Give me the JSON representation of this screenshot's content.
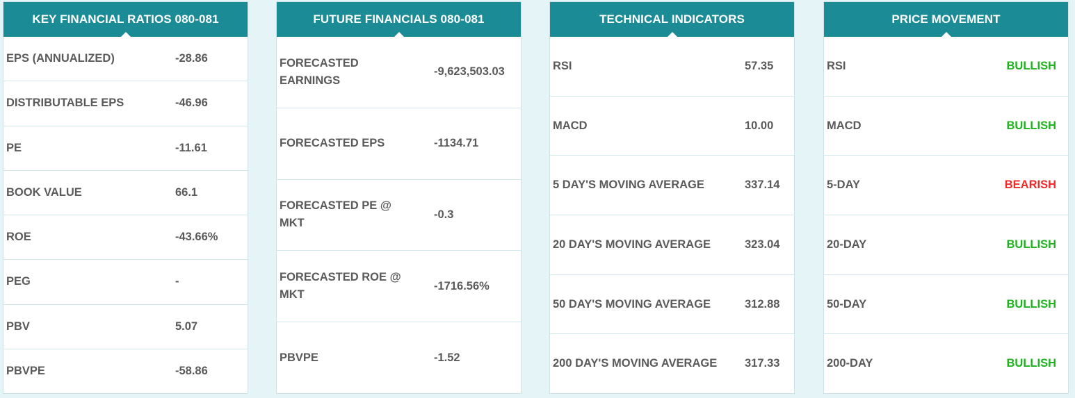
{
  "cards": [
    {
      "title": "KEY FINANCIAL RATIOS 080-081",
      "rows": [
        {
          "label": "EPS (ANNUALIZED)",
          "value": "-28.86"
        },
        {
          "label": "DISTRIBUTABLE EPS",
          "value": "-46.96"
        },
        {
          "label": "PE",
          "value": "-11.61"
        },
        {
          "label": "BOOK VALUE",
          "value": "66.1"
        },
        {
          "label": "ROE",
          "value": "-43.66%"
        },
        {
          "label": "PEG",
          "value": "-"
        },
        {
          "label": "PBV",
          "value": "5.07"
        },
        {
          "label": "PBVPE",
          "value": "-58.86"
        }
      ]
    },
    {
      "title": "FUTURE FINANCIALS 080-081",
      "rows": [
        {
          "label": "FORECASTED EARNINGS",
          "value": "-9,623,503.03"
        },
        {
          "label": "FORECASTED EPS",
          "value": "-1134.71"
        },
        {
          "label": "FORECASTED PE @ MKT",
          "value": "-0.3"
        },
        {
          "label": "FORECASTED ROE @ MKT",
          "value": "-1716.56%"
        },
        {
          "label": "PBVPE",
          "value": "-1.52"
        }
      ]
    },
    {
      "title": "TECHNICAL INDICATORS",
      "rows": [
        {
          "label": "RSI",
          "value": "57.35"
        },
        {
          "label": "MACD",
          "value": "10.00"
        },
        {
          "label": "5 DAY'S MOVING AVERAGE",
          "value": "337.14"
        },
        {
          "label": "20 DAY'S MOVING AVERAGE",
          "value": "323.04"
        },
        {
          "label": "50 DAY'S MOVING AVERAGE",
          "value": "312.88"
        },
        {
          "label": "200 DAY'S MOVING AVERAGE",
          "value": "317.33"
        }
      ]
    },
    {
      "title": "PRICE MOVEMENT",
      "rows": [
        {
          "label": "RSI",
          "value": "BULLISH"
        },
        {
          "label": "MACD",
          "value": "BULLISH"
        },
        {
          "label": "5-DAY",
          "value": "BEARISH"
        },
        {
          "label": "20-DAY",
          "value": "BULLISH"
        },
        {
          "label": "50-DAY",
          "value": "BULLISH"
        },
        {
          "label": "200-DAY",
          "value": "BULLISH"
        }
      ]
    }
  ],
  "colors": {
    "header_bg": "#1b8b96",
    "bullish": "#1fb31f",
    "bearish": "#ee2a2a",
    "text": "#5a5a5a",
    "page_bg": "#e4f4f7"
  }
}
